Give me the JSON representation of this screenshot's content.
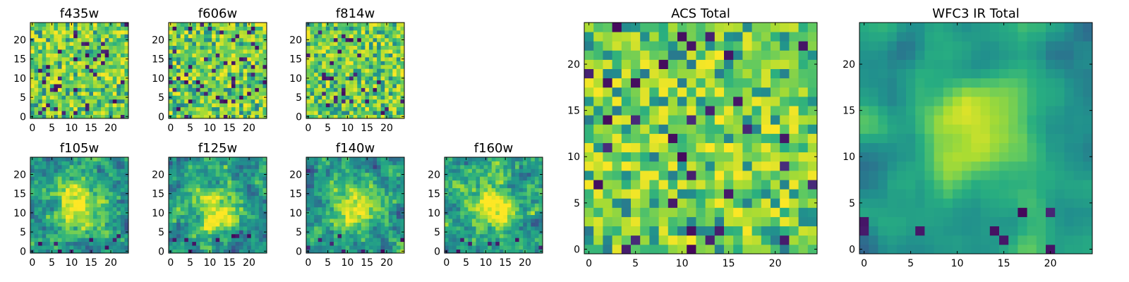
{
  "figure_title": "",
  "chart_data": [
    {
      "type": "heatmap",
      "title": "f435w",
      "xticks": [
        "0",
        "5",
        "10",
        "15",
        "20"
      ],
      "yticks": [
        "0",
        "5",
        "10",
        "15",
        "20"
      ],
      "xlim": [
        0,
        25
      ],
      "ylim": [
        0,
        25
      ],
      "grid": 25,
      "colormap": "viridis",
      "pattern": "noise",
      "seed": 11
    },
    {
      "type": "heatmap",
      "title": "f606w",
      "xticks": [
        "0",
        "5",
        "10",
        "15",
        "20"
      ],
      "yticks": [
        "0",
        "5",
        "10",
        "15",
        "20"
      ],
      "xlim": [
        0,
        25
      ],
      "ylim": [
        0,
        25
      ],
      "grid": 25,
      "colormap": "viridis",
      "pattern": "noise",
      "seed": 22
    },
    {
      "type": "heatmap",
      "title": "f814w",
      "xticks": [
        "0",
        "5",
        "10",
        "15",
        "20"
      ],
      "yticks": [
        "0",
        "5",
        "10",
        "15",
        "20"
      ],
      "xlim": [
        0,
        25
      ],
      "ylim": [
        0,
        25
      ],
      "grid": 25,
      "colormap": "viridis",
      "pattern": "noise",
      "seed": 33
    },
    {
      "type": "heatmap",
      "title": "f105w",
      "xticks": [
        "0",
        "5",
        "10",
        "15",
        "20"
      ],
      "yticks": [
        "0",
        "5",
        "10",
        "15",
        "20"
      ],
      "xlim": [
        0,
        25
      ],
      "ylim": [
        0,
        25
      ],
      "grid": 25,
      "colormap": "viridis",
      "pattern": "source",
      "source_center": [
        12,
        12
      ],
      "seed": 44
    },
    {
      "type": "heatmap",
      "title": "f125w",
      "xticks": [
        "0",
        "5",
        "10",
        "15",
        "20"
      ],
      "yticks": [
        "0",
        "5",
        "10",
        "15",
        "20"
      ],
      "xlim": [
        0,
        25
      ],
      "ylim": [
        0,
        25
      ],
      "grid": 25,
      "colormap": "viridis",
      "pattern": "source",
      "source_center": [
        12,
        12
      ],
      "seed": 55
    },
    {
      "type": "heatmap",
      "title": "f140w",
      "xticks": [
        "0",
        "5",
        "10",
        "15",
        "20"
      ],
      "yticks": [
        "0",
        "5",
        "10",
        "15",
        "20"
      ],
      "xlim": [
        0,
        25
      ],
      "ylim": [
        0,
        25
      ],
      "grid": 25,
      "colormap": "viridis",
      "pattern": "source",
      "source_center": [
        12,
        11
      ],
      "seed": 66
    },
    {
      "type": "heatmap",
      "title": "f160w",
      "xticks": [
        "0",
        "5",
        "10",
        "15",
        "20"
      ],
      "yticks": [
        "0",
        "5",
        "10",
        "15",
        "20"
      ],
      "xlim": [
        0,
        25
      ],
      "ylim": [
        0,
        25
      ],
      "grid": 25,
      "colormap": "viridis",
      "pattern": "source",
      "source_center": [
        12,
        12
      ],
      "seed": 77
    },
    {
      "type": "heatmap",
      "title": "ACS Total",
      "xticks": [
        "0",
        "5",
        "10",
        "15",
        "20"
      ],
      "yticks": [
        "0",
        "5",
        "10",
        "15",
        "20"
      ],
      "xlim": [
        0,
        25
      ],
      "ylim": [
        0,
        25
      ],
      "grid": 25,
      "colormap": "viridis",
      "pattern": "noise",
      "seed": 88
    },
    {
      "type": "heatmap",
      "title": "WFC3 IR Total",
      "xticks": [
        "0",
        "5",
        "10",
        "15",
        "20"
      ],
      "yticks": [
        "0",
        "5",
        "10",
        "15",
        "20"
      ],
      "xlim": [
        0,
        25
      ],
      "ylim": [
        0,
        25
      ],
      "grid": 25,
      "colormap": "viridis",
      "pattern": "smooth_source",
      "source_center": [
        12,
        12
      ],
      "seed": 99
    }
  ]
}
